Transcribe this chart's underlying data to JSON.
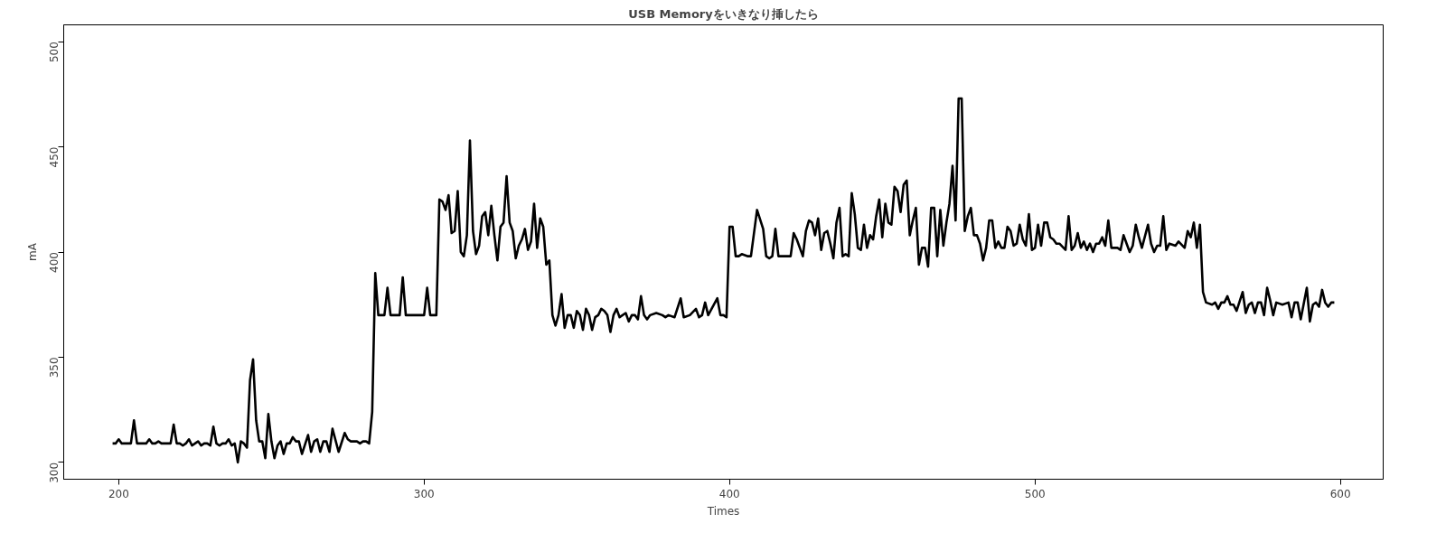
{
  "chart_data": {
    "type": "line",
    "title": "USB Memoryをいきなり挿したら",
    "xlabel": "Times",
    "ylabel": "mA",
    "xlim": [
      182,
      614
    ],
    "ylim": [
      292,
      508
    ],
    "xticks": [
      200,
      300,
      400,
      500,
      600
    ],
    "yticks": [
      300,
      350,
      400,
      450,
      500
    ],
    "grid": false,
    "line_style": "solid",
    "color": "#000000",
    "x": [
      198,
      199,
      200,
      201,
      204,
      205,
      206,
      209,
      210,
      211,
      212,
      213,
      214,
      217,
      218,
      219,
      220,
      221,
      222,
      223,
      224,
      225,
      226,
      227,
      228,
      229,
      230,
      231,
      232,
      233,
      234,
      235,
      236,
      237,
      238,
      239,
      240,
      241,
      242,
      243,
      244,
      245,
      246,
      247,
      248,
      249,
      250,
      251,
      252,
      253,
      254,
      255,
      256,
      257,
      258,
      259,
      260,
      262,
      263,
      264,
      265,
      266,
      267,
      268,
      269,
      270,
      272,
      274,
      275,
      276,
      278,
      279,
      280,
      281,
      282,
      283,
      284,
      285,
      287,
      288,
      289,
      292,
      293,
      294,
      300,
      301,
      302,
      304,
      305,
      306,
      307,
      308,
      309,
      310,
      311,
      312,
      313,
      314,
      315,
      316,
      317,
      318,
      319,
      320,
      321,
      322,
      323,
      324,
      325,
      326,
      327,
      328,
      329,
      330,
      331,
      332,
      333,
      334,
      335,
      336,
      337,
      338,
      339,
      340,
      341,
      342,
      343,
      344,
      345,
      346,
      347,
      348,
      349,
      350,
      351,
      352,
      353,
      354,
      355,
      356,
      357,
      358,
      359,
      360,
      361,
      362,
      363,
      364,
      366,
      367,
      368,
      369,
      370,
      371,
      372,
      373,
      374,
      376,
      378,
      379,
      380,
      382,
      384,
      385,
      387,
      389,
      390,
      391,
      392,
      393,
      396,
      397,
      398,
      399,
      400,
      401,
      402,
      403,
      404,
      406,
      407,
      409,
      411,
      412,
      413,
      414,
      415,
      416,
      420,
      421,
      422,
      424,
      425,
      426,
      427,
      428,
      429,
      430,
      431,
      432,
      433,
      434,
      435,
      436,
      437,
      438,
      439,
      440,
      441,
      442,
      443,
      444,
      445,
      446,
      447,
      448,
      449,
      450,
      451,
      452,
      453,
      454,
      455,
      456,
      457,
      458,
      459,
      460,
      461,
      462,
      463,
      464,
      465,
      466,
      467,
      468,
      469,
      470,
      471,
      472,
      473,
      474,
      475,
      476,
      477,
      478,
      479,
      480,
      481,
      482,
      483,
      484,
      485,
      486,
      487,
      488,
      489,
      490,
      491,
      492,
      493,
      494,
      495,
      496,
      497,
      498,
      499,
      500,
      501,
      502,
      503,
      504,
      505,
      506,
      507,
      508,
      510,
      511,
      512,
      513,
      514,
      515,
      516,
      517,
      518,
      519,
      520,
      521,
      522,
      523,
      524,
      525,
      527,
      528,
      529,
      530,
      531,
      532,
      533,
      534,
      535,
      537,
      538,
      539,
      540,
      541,
      542,
      543,
      544,
      546,
      547,
      549,
      550,
      551,
      552,
      553,
      554,
      555,
      556,
      558,
      559,
      560,
      561,
      562,
      563,
      564,
      565,
      566,
      568,
      569,
      570,
      571,
      572,
      573,
      574,
      575,
      576,
      577,
      578,
      579,
      581,
      583,
      584,
      585,
      586,
      587,
      589,
      590,
      591,
      592,
      593,
      594,
      595,
      596,
      597,
      598
    ],
    "values": [
      309,
      309,
      311,
      309,
      309,
      320,
      309,
      309,
      311,
      309,
      309,
      310,
      309,
      309,
      318,
      309,
      309,
      308,
      309,
      311,
      308,
      309,
      310,
      308,
      309,
      309,
      308,
      317,
      309,
      308,
      309,
      309,
      311,
      308,
      309,
      300,
      310,
      309,
      307,
      339,
      349,
      320,
      310,
      310,
      302,
      323,
      310,
      302,
      308,
      310,
      304,
      309,
      309,
      312,
      310,
      310,
      304,
      313,
      305,
      310,
      311,
      305,
      310,
      310,
      305,
      316,
      305,
      314,
      311,
      310,
      310,
      309,
      310,
      310,
      309,
      324,
      390,
      370,
      370,
      383,
      370,
      370,
      388,
      370,
      370,
      383,
      370,
      370,
      425,
      424,
      420,
      427,
      409,
      410,
      429,
      400,
      398,
      408,
      453,
      410,
      399,
      403,
      417,
      419,
      408,
      422,
      408,
      396,
      412,
      414,
      436,
      414,
      410,
      397,
      403,
      406,
      411,
      401,
      405,
      423,
      402,
      416,
      412,
      394,
      396,
      370,
      365,
      370,
      380,
      364,
      370,
      370,
      364,
      372,
      370,
      363,
      373,
      370,
      363,
      369,
      370,
      373,
      372,
      370,
      362,
      370,
      373,
      369,
      371,
      367,
      370,
      370,
      368,
      379,
      370,
      368,
      370,
      371,
      370,
      369,
      370,
      369,
      378,
      369,
      370,
      373,
      369,
      370,
      376,
      370,
      378,
      370,
      370,
      369,
      412,
      412,
      398,
      398,
      399,
      398,
      398,
      420,
      411,
      398,
      397,
      398,
      411,
      398,
      398,
      409,
      406,
      398,
      410,
      415,
      414,
      408,
      416,
      401,
      409,
      410,
      404,
      397,
      414,
      421,
      398,
      399,
      398,
      428,
      418,
      402,
      401,
      413,
      402,
      408,
      406,
      417,
      425,
      407,
      423,
      414,
      413,
      431,
      429,
      419,
      432,
      434,
      408,
      415,
      421,
      394,
      402,
      402,
      393,
      421,
      421,
      398,
      420,
      403,
      414,
      423,
      441,
      415,
      473,
      473,
      410,
      417,
      421,
      408,
      408,
      404,
      396,
      402,
      415,
      415,
      402,
      405,
      402,
      402,
      412,
      410,
      403,
      404,
      413,
      406,
      403,
      418,
      401,
      402,
      413,
      403,
      414,
      414,
      407,
      406,
      404,
      404,
      401,
      417,
      401,
      403,
      409,
      402,
      405,
      401,
      404,
      400,
      404,
      404,
      407,
      403,
      415,
      402,
      402,
      401,
      408,
      404,
      400,
      403,
      413,
      407,
      402,
      413,
      404,
      400,
      403,
      403,
      417,
      401,
      404,
      403,
      405,
      402,
      410,
      407,
      414,
      402,
      413,
      381,
      376,
      375,
      376,
      373,
      376,
      376,
      379,
      375,
      375,
      372,
      381,
      371,
      375,
      376,
      371,
      376,
      376,
      370,
      383,
      377,
      370,
      376,
      375,
      376,
      369,
      376,
      376,
      368,
      383,
      367,
      375,
      376,
      374,
      382,
      376,
      374,
      376,
      376
    ]
  }
}
